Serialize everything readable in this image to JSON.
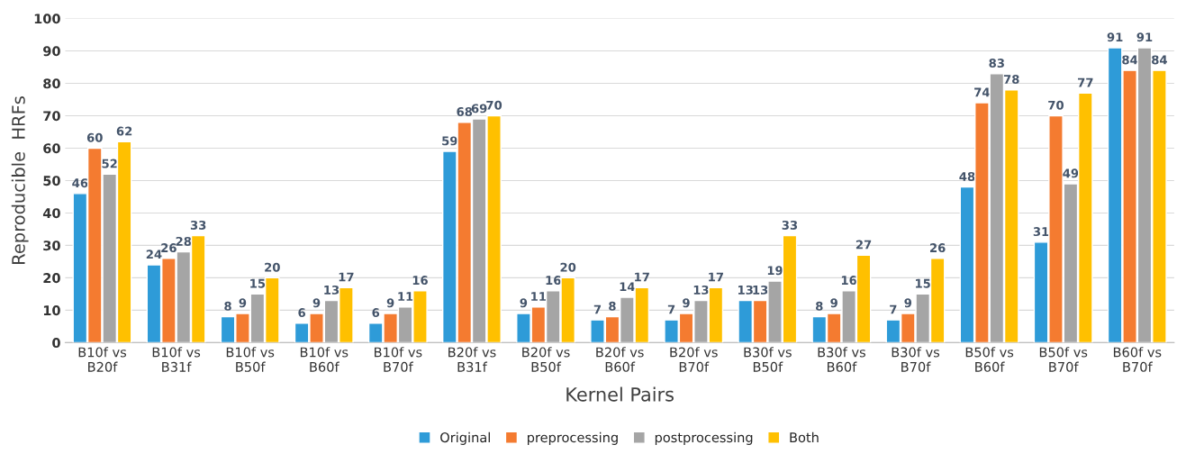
{
  "chart_data": {
    "type": "bar",
    "xlabel": "Kernel Pairs",
    "ylabel": "Reproducible  HRFs",
    "categories": [
      "B10f vs\nB20f",
      "B10f vs\nB31f",
      "B10f vs\nB50f",
      "B10f vs\nB60f",
      "B10f vs\nB70f",
      "B20f vs\nB31f",
      "B20f vs\nB50f",
      "B20f vs\nB60f",
      "B20f vs\nB70f",
      "B30f vs\nB50f",
      "B30f vs\nB60f",
      "B30f vs\nB70f",
      "B50f vs\nB60f",
      "B50f vs\nB70f",
      "B60f vs\nB70f"
    ],
    "series": [
      {
        "name": "Original",
        "color": "#2e9bd8",
        "values": [
          46,
          24,
          8,
          6,
          6,
          59,
          9,
          7,
          7,
          13,
          8,
          7,
          48,
          31,
          91
        ]
      },
      {
        "name": "preprocessing",
        "color": "#f47b30",
        "values": [
          60,
          26,
          9,
          9,
          9,
          68,
          11,
          8,
          9,
          13,
          9,
          9,
          74,
          70,
          84
        ]
      },
      {
        "name": "postprocessing",
        "color": "#a5a5a5",
        "values": [
          52,
          28,
          15,
          13,
          11,
          69,
          16,
          14,
          13,
          19,
          16,
          15,
          83,
          49,
          91
        ]
      },
      {
        "name": "Both",
        "color": "#ffc000",
        "values": [
          62,
          33,
          20,
          17,
          16,
          70,
          20,
          17,
          17,
          33,
          27,
          26,
          78,
          77,
          84
        ]
      }
    ],
    "ylim": [
      0,
      100
    ],
    "yticks": [
      0,
      10,
      20,
      30,
      40,
      50,
      60,
      70,
      80,
      90,
      100
    ],
    "grid": "y",
    "legend": "bottom",
    "data_labels": true
  }
}
